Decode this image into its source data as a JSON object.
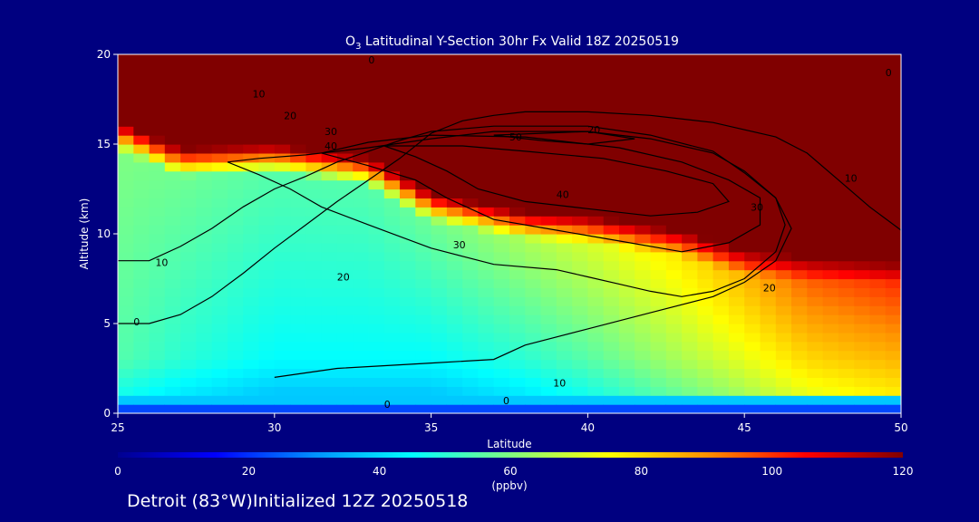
{
  "chart_data": {
    "type": "heatmap",
    "title_prefix": "O",
    "title_sub": "3",
    "title_rest": " Latitudinal Y-Section 30hr  Fx Valid 18Z 20250519",
    "xlabel": "Latitude",
    "ylabel": "Altitude (km)",
    "xlim": [
      25,
      50
    ],
    "ylim": [
      0,
      20
    ],
    "x_ticks": [
      "25",
      "30",
      "35",
      "40",
      "45",
      "50"
    ],
    "y_ticks": [
      "0",
      "5",
      "10",
      "15",
      "20"
    ],
    "colorbar": {
      "range": [
        0,
        120
      ],
      "ticks": [
        "0",
        "20",
        "40",
        "60",
        "80",
        "100",
        "120"
      ],
      "unit": "(ppbv)",
      "colors": [
        "#000090",
        "#0000ff",
        "#0090ff",
        "#00ffff",
        "#80ff80",
        "#ffff00",
        "#ff9000",
        "#ff0000",
        "#800000"
      ]
    },
    "field_columns": [
      {
        "lat": 25,
        "tropopause_km": 16.5,
        "low": 55,
        "mid": 60
      },
      {
        "lat": 27,
        "tropopause_km": 15.0,
        "low": 50,
        "mid": 58
      },
      {
        "lat": 30,
        "tropopause_km": 15.2,
        "low": 45,
        "mid": 55
      },
      {
        "lat": 33,
        "tropopause_km": 14.5,
        "low": 45,
        "mid": 55
      },
      {
        "lat": 35,
        "tropopause_km": 12.5,
        "low": 45,
        "mid": 58
      },
      {
        "lat": 38,
        "tropopause_km": 11.5,
        "low": 50,
        "mid": 65
      },
      {
        "lat": 40,
        "tropopause_km": 11.3,
        "low": 55,
        "mid": 70
      },
      {
        "lat": 43,
        "tropopause_km": 10.5,
        "low": 65,
        "mid": 78
      },
      {
        "lat": 45,
        "tropopause_km": 9.5,
        "low": 72,
        "mid": 85
      },
      {
        "lat": 47,
        "tropopause_km": 9.2,
        "low": 80,
        "mid": 95
      },
      {
        "lat": 50,
        "tropopause_km": 9.0,
        "low": 85,
        "mid": 100
      }
    ],
    "contour_levels": [
      {
        "level": "0",
        "points": [
          [
            25,
            5.0
          ],
          [
            26,
            5.0
          ],
          [
            27,
            5.5
          ],
          [
            28,
            6.5
          ],
          [
            29,
            7.8
          ],
          [
            30,
            9.2
          ],
          [
            31,
            10.5
          ],
          [
            32,
            11.8
          ],
          [
            33,
            13.0
          ],
          [
            34,
            14.2
          ],
          [
            35,
            15.6
          ],
          [
            36,
            16.3
          ],
          [
            37,
            16.6
          ],
          [
            38,
            16.8
          ],
          [
            40,
            16.8
          ],
          [
            42,
            16.6
          ],
          [
            44,
            16.2
          ],
          [
            46,
            15.4
          ],
          [
            47,
            14.5
          ],
          [
            48,
            13.0
          ],
          [
            49,
            11.5
          ],
          [
            50,
            10.2
          ]
        ]
      },
      {
        "level": "10",
        "points": [
          [
            25,
            8.5
          ],
          [
            26,
            8.5
          ],
          [
            27,
            9.3
          ],
          [
            28,
            10.3
          ],
          [
            29,
            11.5
          ],
          [
            30,
            12.5
          ],
          [
            31,
            13.2
          ],
          [
            32,
            14.0
          ],
          [
            33,
            14.6
          ],
          [
            34,
            15.2
          ],
          [
            35,
            15.7
          ],
          [
            37,
            16.0
          ],
          [
            40,
            16.0
          ],
          [
            42,
            15.5
          ],
          [
            44,
            14.6
          ],
          [
            45,
            13.4
          ],
          [
            46,
            12.0
          ],
          [
            46.5,
            10.3
          ],
          [
            46,
            8.5
          ],
          [
            45,
            7.3
          ],
          [
            44,
            6.5
          ],
          [
            42,
            5.6
          ],
          [
            40,
            4.7
          ],
          [
            38,
            3.8
          ],
          [
            37,
            3.0
          ],
          [
            35,
            2.8
          ],
          [
            32,
            2.5
          ],
          [
            30,
            2.0
          ]
        ]
      },
      {
        "level": "20",
        "points": [
          [
            28.5,
            14.0
          ],
          [
            29.5,
            13.3
          ],
          [
            30.5,
            12.5
          ],
          [
            31.5,
            11.5
          ],
          [
            33,
            10.5
          ],
          [
            35,
            9.2
          ],
          [
            37,
            8.3
          ],
          [
            39,
            8.0
          ],
          [
            40,
            7.6
          ],
          [
            41,
            7.2
          ],
          [
            42,
            6.8
          ],
          [
            43,
            6.5
          ],
          [
            44,
            6.8
          ],
          [
            45,
            7.5
          ],
          [
            46,
            9.0
          ],
          [
            46.3,
            10.5
          ],
          [
            46,
            12.0
          ],
          [
            45,
            13.5
          ],
          [
            44,
            14.5
          ],
          [
            42,
            15.3
          ],
          [
            40,
            15.7
          ],
          [
            37,
            15.7
          ],
          [
            35,
            15.3
          ],
          [
            33,
            14.8
          ],
          [
            31,
            14.4
          ],
          [
            29.5,
            14.2
          ],
          [
            28.5,
            14.0
          ]
        ]
      },
      {
        "level": "30",
        "points": [
          [
            31.5,
            14.5
          ],
          [
            33,
            13.8
          ],
          [
            34.5,
            13.0
          ],
          [
            35.5,
            12.0
          ],
          [
            37,
            10.8
          ],
          [
            39,
            10.2
          ],
          [
            41,
            9.6
          ],
          [
            43,
            9.0
          ],
          [
            44.5,
            9.5
          ],
          [
            45.5,
            10.5
          ],
          [
            45.5,
            12.0
          ],
          [
            44.5,
            13.0
          ],
          [
            43,
            14.0
          ],
          [
            41,
            14.8
          ],
          [
            38,
            15.4
          ],
          [
            35,
            15.5
          ],
          [
            33,
            15.1
          ],
          [
            31.5,
            14.5
          ]
        ]
      },
      {
        "level": "40",
        "points": [
          [
            33.5,
            14.9
          ],
          [
            34.5,
            14.3
          ],
          [
            35.5,
            13.5
          ],
          [
            36.5,
            12.5
          ],
          [
            38,
            11.8
          ],
          [
            40,
            11.4
          ],
          [
            42,
            11.0
          ],
          [
            43.5,
            11.2
          ],
          [
            44.5,
            11.8
          ],
          [
            44,
            12.8
          ],
          [
            42.5,
            13.5
          ],
          [
            40.5,
            14.2
          ],
          [
            38,
            14.6
          ],
          [
            36,
            14.9
          ],
          [
            33.5,
            14.9
          ]
        ]
      },
      {
        "level": "50",
        "points": [
          [
            37,
            15.5
          ],
          [
            38.5,
            15.6
          ],
          [
            40,
            15.7
          ],
          [
            41.5,
            15.3
          ],
          [
            40,
            15.0
          ],
          [
            38.5,
            15.2
          ],
          [
            37,
            15.5
          ]
        ]
      }
    ],
    "inline_contour_labels": [
      {
        "text": "0",
        "lat": 25.6,
        "alt": 5.1
      },
      {
        "text": "0",
        "lat": 37.4,
        "alt": 0.7
      },
      {
        "text": "0",
        "lat": 33.6,
        "alt": 0.5
      },
      {
        "text": "0",
        "lat": 33.1,
        "alt": 19.7
      },
      {
        "text": "0",
        "lat": 49.6,
        "alt": 19.0
      },
      {
        "text": "10",
        "lat": 26.4,
        "alt": 8.4
      },
      {
        "text": "10",
        "lat": 29.5,
        "alt": 17.8
      },
      {
        "text": "10",
        "lat": 39.1,
        "alt": 1.7
      },
      {
        "text": "10",
        "lat": 48.4,
        "alt": 13.1
      },
      {
        "text": "20",
        "lat": 32.2,
        "alt": 7.6
      },
      {
        "text": "20",
        "lat": 30.5,
        "alt": 16.6
      },
      {
        "text": "20",
        "lat": 45.8,
        "alt": 7.0
      },
      {
        "text": "20",
        "lat": 40.2,
        "alt": 15.8
      },
      {
        "text": "30",
        "lat": 35.9,
        "alt": 9.4
      },
      {
        "text": "30",
        "lat": 31.8,
        "alt": 15.7
      },
      {
        "text": "30",
        "lat": 45.4,
        "alt": 11.5
      },
      {
        "text": "40",
        "lat": 31.8,
        "alt": 14.9
      },
      {
        "text": "40",
        "lat": 39.2,
        "alt": 12.2
      },
      {
        "text": "50",
        "lat": 37.7,
        "alt": 15.4
      }
    ]
  },
  "footer": "Detroit (83°W)Initialized 12Z 20250518"
}
